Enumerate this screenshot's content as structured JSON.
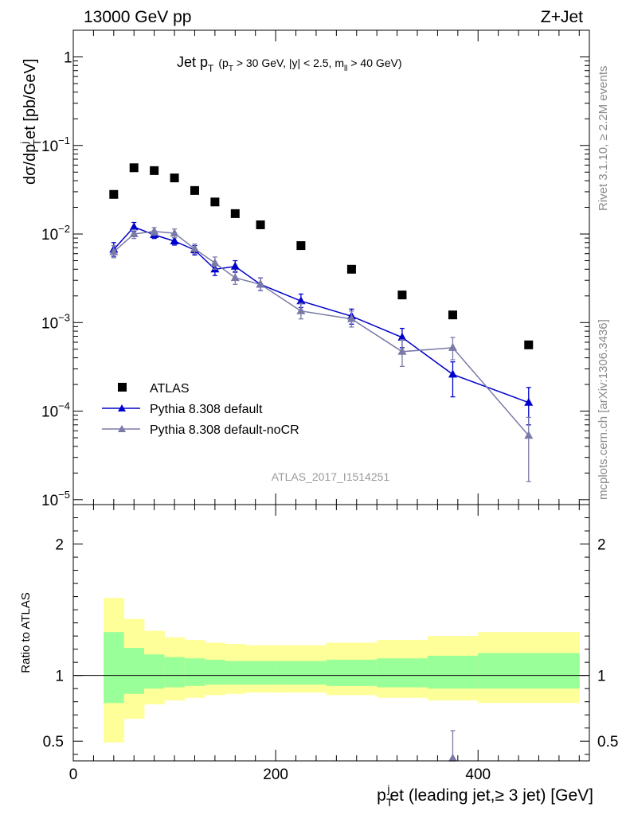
{
  "header": {
    "left": "13000 GeV pp",
    "right": "Z+Jet"
  },
  "side_labels": {
    "rivet": "Rivet 3.1.10, ≥ 2.2M events",
    "mcplots": "mcplots.cern.ch [arXiv:1306.3436]"
  },
  "chart_data": [
    {
      "type": "scatter",
      "panel": "main",
      "title": {
        "main": "Jet p",
        "main_sub": "T",
        "cut_open": "(p",
        "cut_sub": "T",
        "cut_mid": " > 30 GeV, |y| < 2.5, m",
        "cut_sub2": "ll",
        "cut_close": " > 40 GeV)"
      },
      "ylabel": {
        "p1": "dσ/dp",
        "sup": "j",
        "sub": "T",
        "p2": "et [pb/GeV]"
      },
      "yscale": "log",
      "xlim": [
        0,
        510
      ],
      "ylim": [
        8.8e-06,
        2.0
      ],
      "y_ticks": [
        {
          "v": 1,
          "m": "1",
          "e": ""
        },
        {
          "v": 0.1,
          "m": "10",
          "e": "−1"
        },
        {
          "v": 0.01,
          "m": "10",
          "e": "−2"
        },
        {
          "v": 0.001,
          "m": "10",
          "e": "−3"
        },
        {
          "v": 0.0001,
          "m": "10",
          "e": "−4"
        },
        {
          "v": 1e-05,
          "m": "10",
          "e": "−5"
        }
      ],
      "watermark": "ATLAS_2017_I1514251",
      "legend_position": "bottom-left",
      "series": [
        {
          "name": "ATLAS",
          "marker": "square",
          "color": "#000000",
          "x": [
            40,
            60,
            80,
            100,
            120,
            140,
            160,
            185,
            225,
            275,
            325,
            375,
            450
          ],
          "y": [
            0.028,
            0.056,
            0.052,
            0.043,
            0.031,
            0.023,
            0.017,
            0.0127,
            0.0074,
            0.004,
            0.00205,
            0.00122,
            0.00056
          ]
        },
        {
          "name": "Pythia 8.308 default",
          "marker": "triangle",
          "color": "#0000cc",
          "x": [
            40,
            60,
            80,
            100,
            120,
            140,
            160,
            185,
            225,
            275,
            325,
            375,
            450
          ],
          "y": [
            0.0067,
            0.012,
            0.0098,
            0.0083,
            0.0066,
            0.004,
            0.0043,
            0.0027,
            0.00175,
            0.00118,
            0.00068,
            0.00026,
            0.000125
          ],
          "err_up": [
            0.008,
            0.0135,
            0.0108,
            0.0091,
            0.0074,
            0.0046,
            0.005,
            0.0032,
            0.0021,
            0.00142,
            0.00086,
            0.00036,
            0.000185
          ],
          "err_down": [
            0.0056,
            0.0107,
            0.0089,
            0.0075,
            0.0058,
            0.0034,
            0.0037,
            0.0023,
            0.00148,
            0.00096,
            0.00052,
            0.000145,
            7e-05
          ]
        },
        {
          "name": "Pythia 8.308 default-noCR",
          "marker": "triangle",
          "color": "#7a7aa8",
          "x": [
            40,
            60,
            80,
            100,
            120,
            140,
            160,
            185,
            225,
            275,
            325,
            375,
            450
          ],
          "y": [
            0.0063,
            0.01,
            0.0107,
            0.0102,
            0.0068,
            0.0047,
            0.0032,
            0.0027,
            0.00135,
            0.0011,
            0.00047,
            0.00052,
            5.3e-05
          ],
          "err_up": [
            0.0074,
            0.0112,
            0.0118,
            0.0114,
            0.0077,
            0.0055,
            0.0038,
            0.0032,
            0.00165,
            0.00135,
            0.00064,
            0.00068,
            8.5e-05
          ],
          "err_down": [
            0.0054,
            0.0089,
            0.0097,
            0.0091,
            0.006,
            0.004,
            0.0027,
            0.0023,
            0.0011,
            0.00089,
            0.00032,
            0.00038,
            1.6e-05
          ]
        }
      ]
    },
    {
      "type": "area",
      "panel": "ratio",
      "ylabel": "Ratio to ATLAS",
      "xlabel": {
        "p1": "p",
        "sub": "T",
        "sup": "j",
        "p2": "et (leading jet,≥ 3 jet) [GeV]"
      },
      "xlim": [
        0,
        510
      ],
      "ylim": [
        0.35,
        2.3
      ],
      "x_ticks": [
        {
          "v": 0,
          "label": "0"
        },
        {
          "v": 200,
          "label": "200"
        },
        {
          "v": 400,
          "label": "400"
        }
      ],
      "y_ticks": [
        {
          "v": 0.5,
          "label": "0.5"
        },
        {
          "v": 1,
          "label": "1"
        },
        {
          "v": 2,
          "label": "2"
        }
      ],
      "bands": {
        "edges": [
          30,
          50,
          70,
          90,
          110,
          130,
          150,
          170,
          200,
          250,
          300,
          350,
          400,
          500
        ],
        "yellow_low": [
          0.49,
          0.67,
          0.78,
          0.81,
          0.83,
          0.85,
          0.86,
          0.87,
          0.87,
          0.85,
          0.83,
          0.81,
          0.79
        ],
        "yellow_high": [
          1.59,
          1.43,
          1.34,
          1.29,
          1.27,
          1.25,
          1.24,
          1.23,
          1.23,
          1.25,
          1.27,
          1.3,
          1.33
        ],
        "green_low": [
          0.79,
          0.86,
          0.9,
          0.91,
          0.92,
          0.93,
          0.93,
          0.93,
          0.93,
          0.92,
          0.91,
          0.9,
          0.9
        ],
        "green_high": [
          1.33,
          1.21,
          1.16,
          1.14,
          1.13,
          1.12,
          1.11,
          1.11,
          1.11,
          1.12,
          1.13,
          1.15,
          1.17
        ],
        "yellow_color": "#ffff99",
        "green_color": "#99ff99"
      },
      "points": [
        {
          "series": "Pythia 8.308 default-noCR",
          "x": 375,
          "y": 0.37,
          "err_up": 0.58,
          "color": "#7a7aa8"
        }
      ]
    }
  ]
}
